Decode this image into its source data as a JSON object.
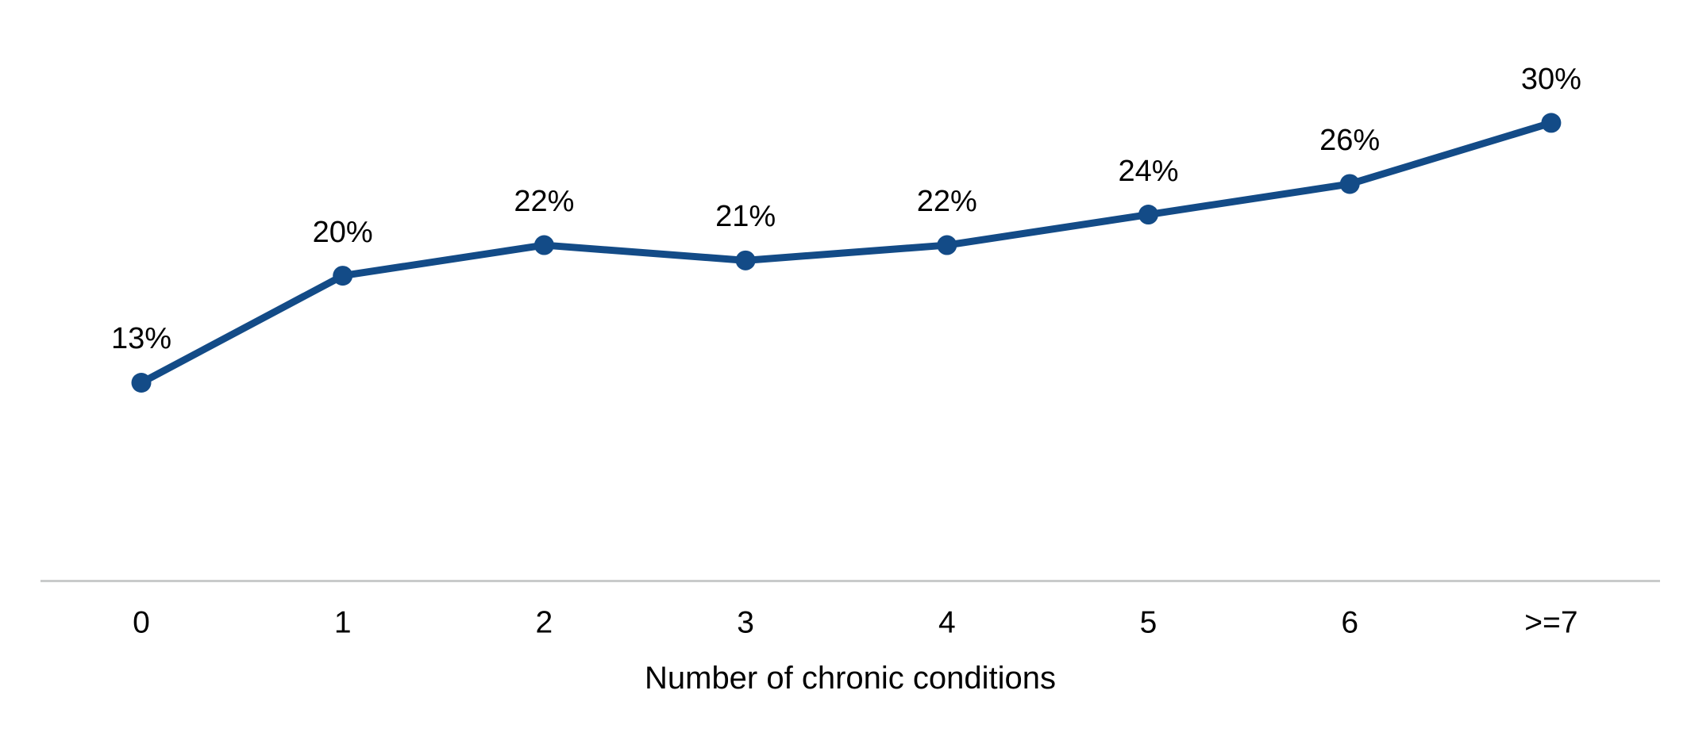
{
  "chart_data": {
    "type": "line",
    "title": "",
    "xlabel": "Number of chronic conditions",
    "ylabel": "",
    "categories": [
      "0",
      "1",
      "2",
      "3",
      "4",
      "5",
      "6",
      ">=7"
    ],
    "series": [
      {
        "name": "",
        "values": [
          13,
          20,
          22,
          21,
          22,
          24,
          26,
          30
        ],
        "point_labels": [
          "13%",
          "20%",
          "22%",
          "21%",
          "22%",
          "24%",
          "26%",
          "30%"
        ]
      }
    ],
    "ylim": [
      0,
      34
    ],
    "grid": false,
    "legend_position": "none",
    "marker": "circle",
    "colors": {
      "line": "#134B87",
      "marker": "#134B87",
      "data_label": "#000000",
      "tick_label": "#000000",
      "axis_title": "#000000",
      "axis_line": "#C9CBCB",
      "background": "#FFFFFF"
    }
  }
}
